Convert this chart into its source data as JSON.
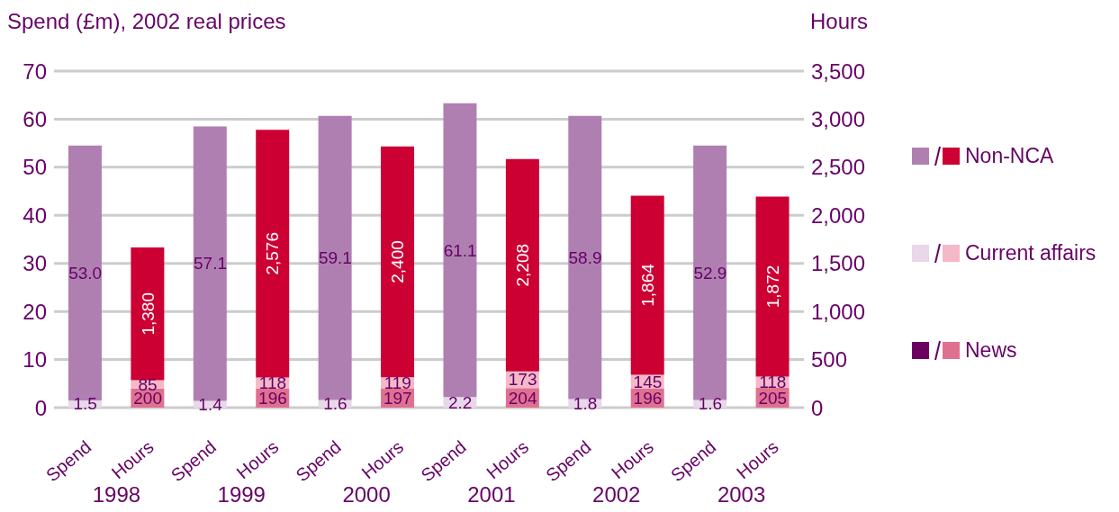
{
  "chart_data": {
    "type": "bar",
    "stacked": true,
    "ylabel": "Spend (£m), 2002 real prices",
    "y2label": "Hours",
    "categories": [
      "Spend",
      "Hours",
      "Spend",
      "Hours",
      "Spend",
      "Hours",
      "Spend",
      "Hours",
      "Spend",
      "Hours",
      "Spend",
      "Hours"
    ],
    "annotations": [
      "1998",
      "1999",
      "2000",
      "2001",
      "2002",
      "2003"
    ],
    "ylim": [
      0,
      70
    ],
    "yticks": [
      0,
      10,
      20,
      30,
      40,
      50,
      60,
      70
    ],
    "y2lim": [
      0,
      3500
    ],
    "y2ticks": [
      0,
      {
        "value": 500,
        "label": "500"
      },
      {
        "value": 1000,
        "label": "1,000"
      },
      {
        "value": 1500,
        "label": "1,500"
      },
      {
        "value": 2000,
        "label": "2,000"
      },
      {
        "value": 2500,
        "label": "2,500"
      },
      {
        "value": 3000,
        "label": "3,000"
      },
      {
        "value": 3500,
        "label": "3,500"
      }
    ],
    "grid": "y",
    "legend": "right",
    "series": [
      {
        "color": "#6b0060",
        "values": [
          null,
          null,
          null,
          null,
          null,
          null,
          null,
          null,
          null,
          null,
          null,
          null
        ]
      },
      {
        "name": "News",
        "color": "#e07090",
        "axis": "y2",
        "values": [
          null,
          200,
          null,
          196,
          null,
          197,
          null,
          204,
          null,
          196,
          null,
          205
        ],
        "value_labels": [
          null,
          "200",
          null,
          "196",
          null,
          "197",
          null,
          "204",
          null,
          "196",
          null,
          "205"
        ]
      },
      {
        "color": "#e8d8ea",
        "values": [
          1.5,
          null,
          1.4,
          null,
          1.6,
          null,
          2.2,
          null,
          1.8,
          null,
          1.6,
          null
        ],
        "value_labels": [
          "1.5",
          null,
          "1.4",
          null,
          "1.6",
          null,
          "2.2",
          null,
          "1.8",
          null,
          "1.6",
          null
        ]
      },
      {
        "name": "Current affairs",
        "color": "#f4b8c8",
        "axis": "y2",
        "values": [
          null,
          85,
          null,
          118,
          null,
          119,
          null,
          173,
          null,
          145,
          null,
          118
        ],
        "value_labels": [
          null,
          "85",
          null,
          "118",
          null,
          "119",
          null,
          "173",
          null,
          "145",
          null,
          "118"
        ]
      },
      {
        "color": "#b07fb2",
        "values": [
          53.0,
          null,
          57.1,
          null,
          59.1,
          null,
          61.1,
          null,
          58.9,
          null,
          52.9,
          null
        ],
        "value_labels": [
          "53.0",
          null,
          "57.1",
          null,
          "59.1",
          null,
          "61.1",
          null,
          "58.9",
          null,
          "52.9",
          null
        ]
      },
      {
        "name": "Non-NCA",
        "color": "#cc0033",
        "axis": "y2",
        "values": [
          null,
          1380,
          null,
          2576,
          null,
          2400,
          null,
          2208,
          null,
          1864,
          null,
          1872
        ],
        "value_labels": [
          null,
          "1,380",
          null,
          "2,576",
          null,
          "2,400",
          null,
          "2,208",
          null,
          "1,864",
          null,
          "1,872"
        ]
      }
    ]
  }
}
